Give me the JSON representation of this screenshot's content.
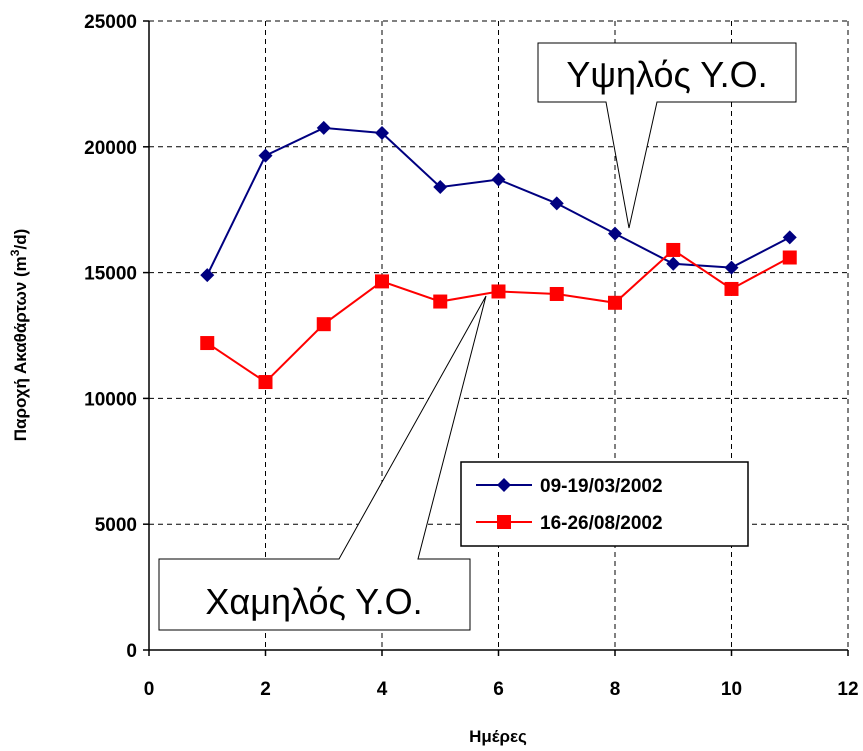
{
  "chart_data": {
    "type": "line",
    "xlabel": "Ημέρες",
    "ylabel_main": "Παροχή Ακαθάρτων (m",
    "ylabel_sup": "3",
    "ylabel_end": "/d)",
    "xlim": [
      0,
      12
    ],
    "ylim": [
      0,
      25000
    ],
    "xticks": [
      0,
      2,
      4,
      6,
      8,
      10,
      12
    ],
    "yticks": [
      0,
      5000,
      10000,
      15000,
      20000,
      25000
    ],
    "grid": true,
    "legend_position": "lower-right",
    "series": [
      {
        "name": "09-19/03/2002",
        "color": "#000080",
        "marker": "diamond",
        "x": [
          1,
          2,
          3,
          4,
          5,
          6,
          7,
          8,
          9,
          10,
          11
        ],
        "y": [
          14900,
          19650,
          20750,
          20550,
          18400,
          18700,
          17750,
          16550,
          15350,
          15200,
          16400
        ]
      },
      {
        "name": "16-26/08/2002",
        "color": "#ff0000",
        "marker": "square",
        "x": [
          1,
          2,
          3,
          4,
          5,
          6,
          7,
          8,
          9,
          10,
          11
        ],
        "y": [
          12200,
          10650,
          12950,
          14650,
          13850,
          14250,
          14150,
          13800,
          15900,
          14350,
          15600
        ]
      }
    ],
    "annotations": [
      {
        "text": "Υψηλός Υ.Ο.",
        "target_series": 0,
        "target_x": 8.2
      },
      {
        "text": "Χαμηλός Υ.Ο.",
        "target_series": 1,
        "target_x": 5.8
      }
    ]
  }
}
